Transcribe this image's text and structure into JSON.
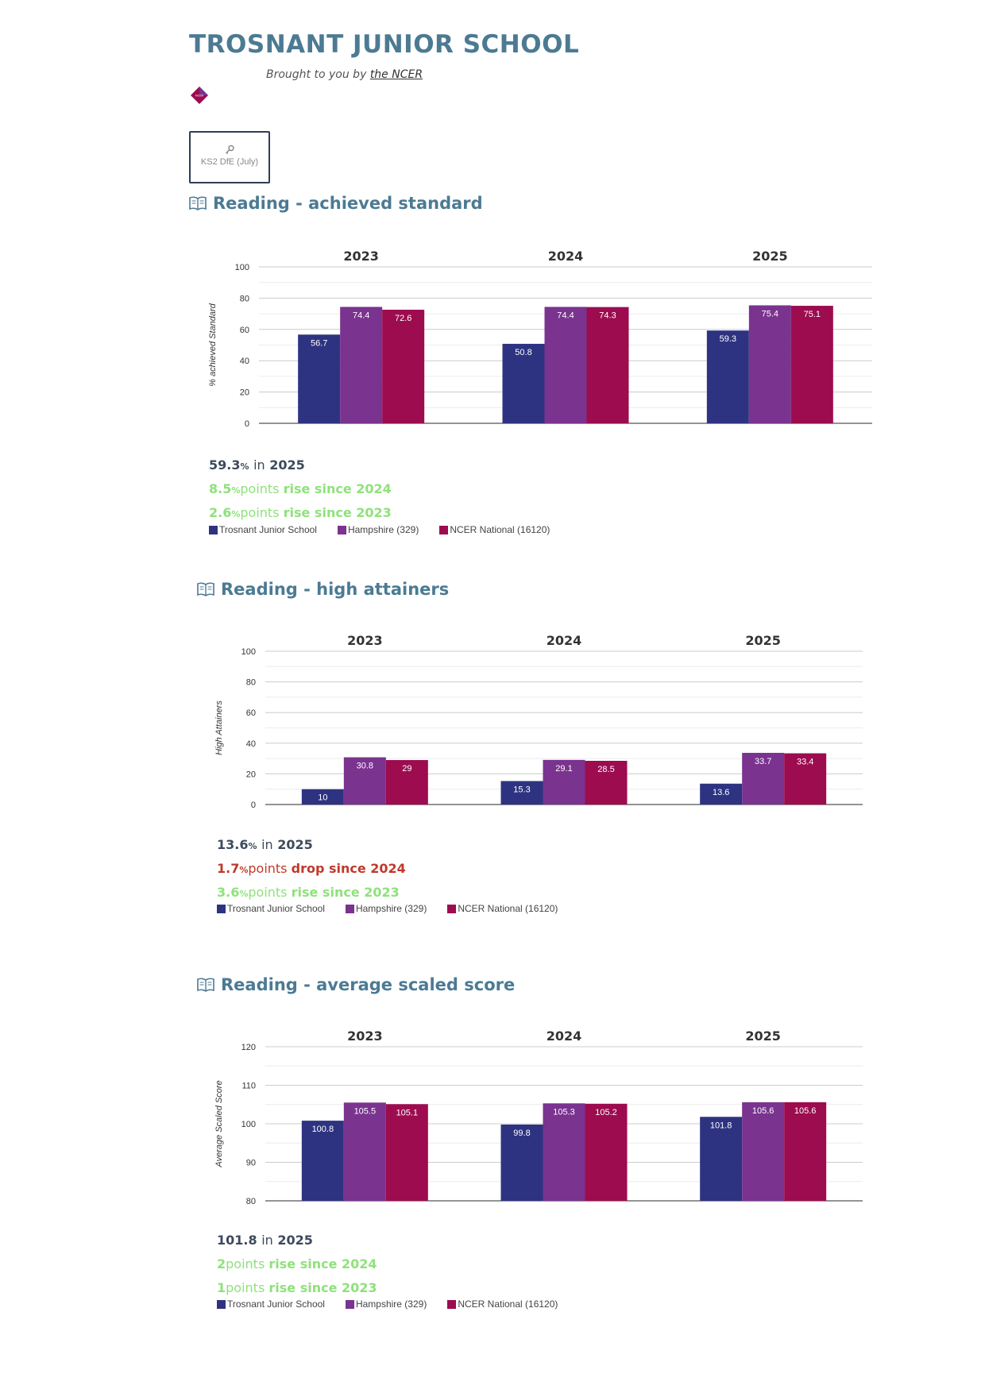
{
  "header": {
    "title": "TROSNANT JUNIOR SCHOOL",
    "brought_prefix": "Brought to you by",
    "brought_link": "the NCER",
    "logo_text": "NCER",
    "filter_label": "KS2 DfE (July)"
  },
  "colors": {
    "school": "#2e3381",
    "hampshire": "#7a338f",
    "national": "#9c0c4f",
    "title": "#4c7a93",
    "rise": "#8ee27a",
    "drop": "#c0392b"
  },
  "legend": [
    "Trosnant Junior School",
    "Hampshire (329)",
    "NCER National (16120)"
  ],
  "sections": [
    {
      "title": "Reading - achieved standard",
      "summary": {
        "value": "59.3",
        "unit": "%",
        "in_text": "in",
        "year": "2025",
        "lines": [
          {
            "value": "8.5",
            "unit": "%",
            "points": "points",
            "change": "rise since 2024",
            "direction": "rise"
          },
          {
            "value": "2.6",
            "unit": "%",
            "points": "points",
            "change": "rise since 2023",
            "direction": "rise"
          }
        ]
      }
    },
    {
      "title": "Reading - high attainers",
      "summary": {
        "value": "13.6",
        "unit": "%",
        "in_text": "in",
        "year": "2025",
        "lines": [
          {
            "value": "1.7",
            "unit": "%",
            "points": "points",
            "change": "drop since 2024",
            "direction": "drop"
          },
          {
            "value": "3.6",
            "unit": "%",
            "points": "points",
            "change": "rise since 2023",
            "direction": "rise"
          }
        ]
      }
    },
    {
      "title": "Reading - average scaled score",
      "summary": {
        "value": "101.8",
        "unit": "",
        "in_text": "in",
        "year": "2025",
        "lines": [
          {
            "value": "2",
            "unit": "",
            "points": "points",
            "change": "rise since 2024",
            "direction": "rise"
          },
          {
            "value": "1",
            "unit": "",
            "points": "points",
            "change": "rise since 2023",
            "direction": "rise"
          }
        ]
      }
    }
  ],
  "chart_data": [
    {
      "type": "bar",
      "title": "Reading - achieved standard",
      "ylabel": "% achieved Standard",
      "xlabel": "",
      "categories": [
        "2023",
        "2024",
        "2025"
      ],
      "ylim": [
        0,
        100
      ],
      "yticks": [
        0,
        20,
        40,
        60,
        80,
        100
      ],
      "grid": true,
      "legend_position": "bottom-left",
      "series": [
        {
          "name": "Trosnant Junior School",
          "values": [
            56.7,
            50.8,
            59.3
          ]
        },
        {
          "name": "Hampshire (329)",
          "values": [
            74.4,
            74.4,
            75.4
          ]
        },
        {
          "name": "NCER National (16120)",
          "values": [
            72.6,
            74.3,
            75.1
          ]
        }
      ]
    },
    {
      "type": "bar",
      "title": "Reading - high attainers",
      "ylabel": "High Attainers",
      "xlabel": "",
      "categories": [
        "2023",
        "2024",
        "2025"
      ],
      "ylim": [
        0,
        100
      ],
      "yticks": [
        0,
        20,
        40,
        60,
        80,
        100
      ],
      "grid": true,
      "legend_position": "bottom-left",
      "series": [
        {
          "name": "Trosnant Junior School",
          "values": [
            10,
            15.3,
            13.6
          ]
        },
        {
          "name": "Hampshire (329)",
          "values": [
            30.8,
            29.1,
            33.7
          ]
        },
        {
          "name": "NCER National (16120)",
          "values": [
            29,
            28.5,
            33.4
          ]
        }
      ]
    },
    {
      "type": "bar",
      "title": "Reading - average scaled score",
      "ylabel": "Average Scaled Score",
      "xlabel": "",
      "categories": [
        "2023",
        "2024",
        "2025"
      ],
      "ylim": [
        80,
        120
      ],
      "yticks": [
        80,
        90,
        100,
        110,
        120
      ],
      "grid": true,
      "legend_position": "bottom-left",
      "series": [
        {
          "name": "Trosnant Junior School",
          "values": [
            100.8,
            99.8,
            101.8
          ]
        },
        {
          "name": "Hampshire (329)",
          "values": [
            105.5,
            105.3,
            105.6
          ]
        },
        {
          "name": "NCER National (16120)",
          "values": [
            105.1,
            105.2,
            105.6
          ]
        }
      ]
    }
  ]
}
